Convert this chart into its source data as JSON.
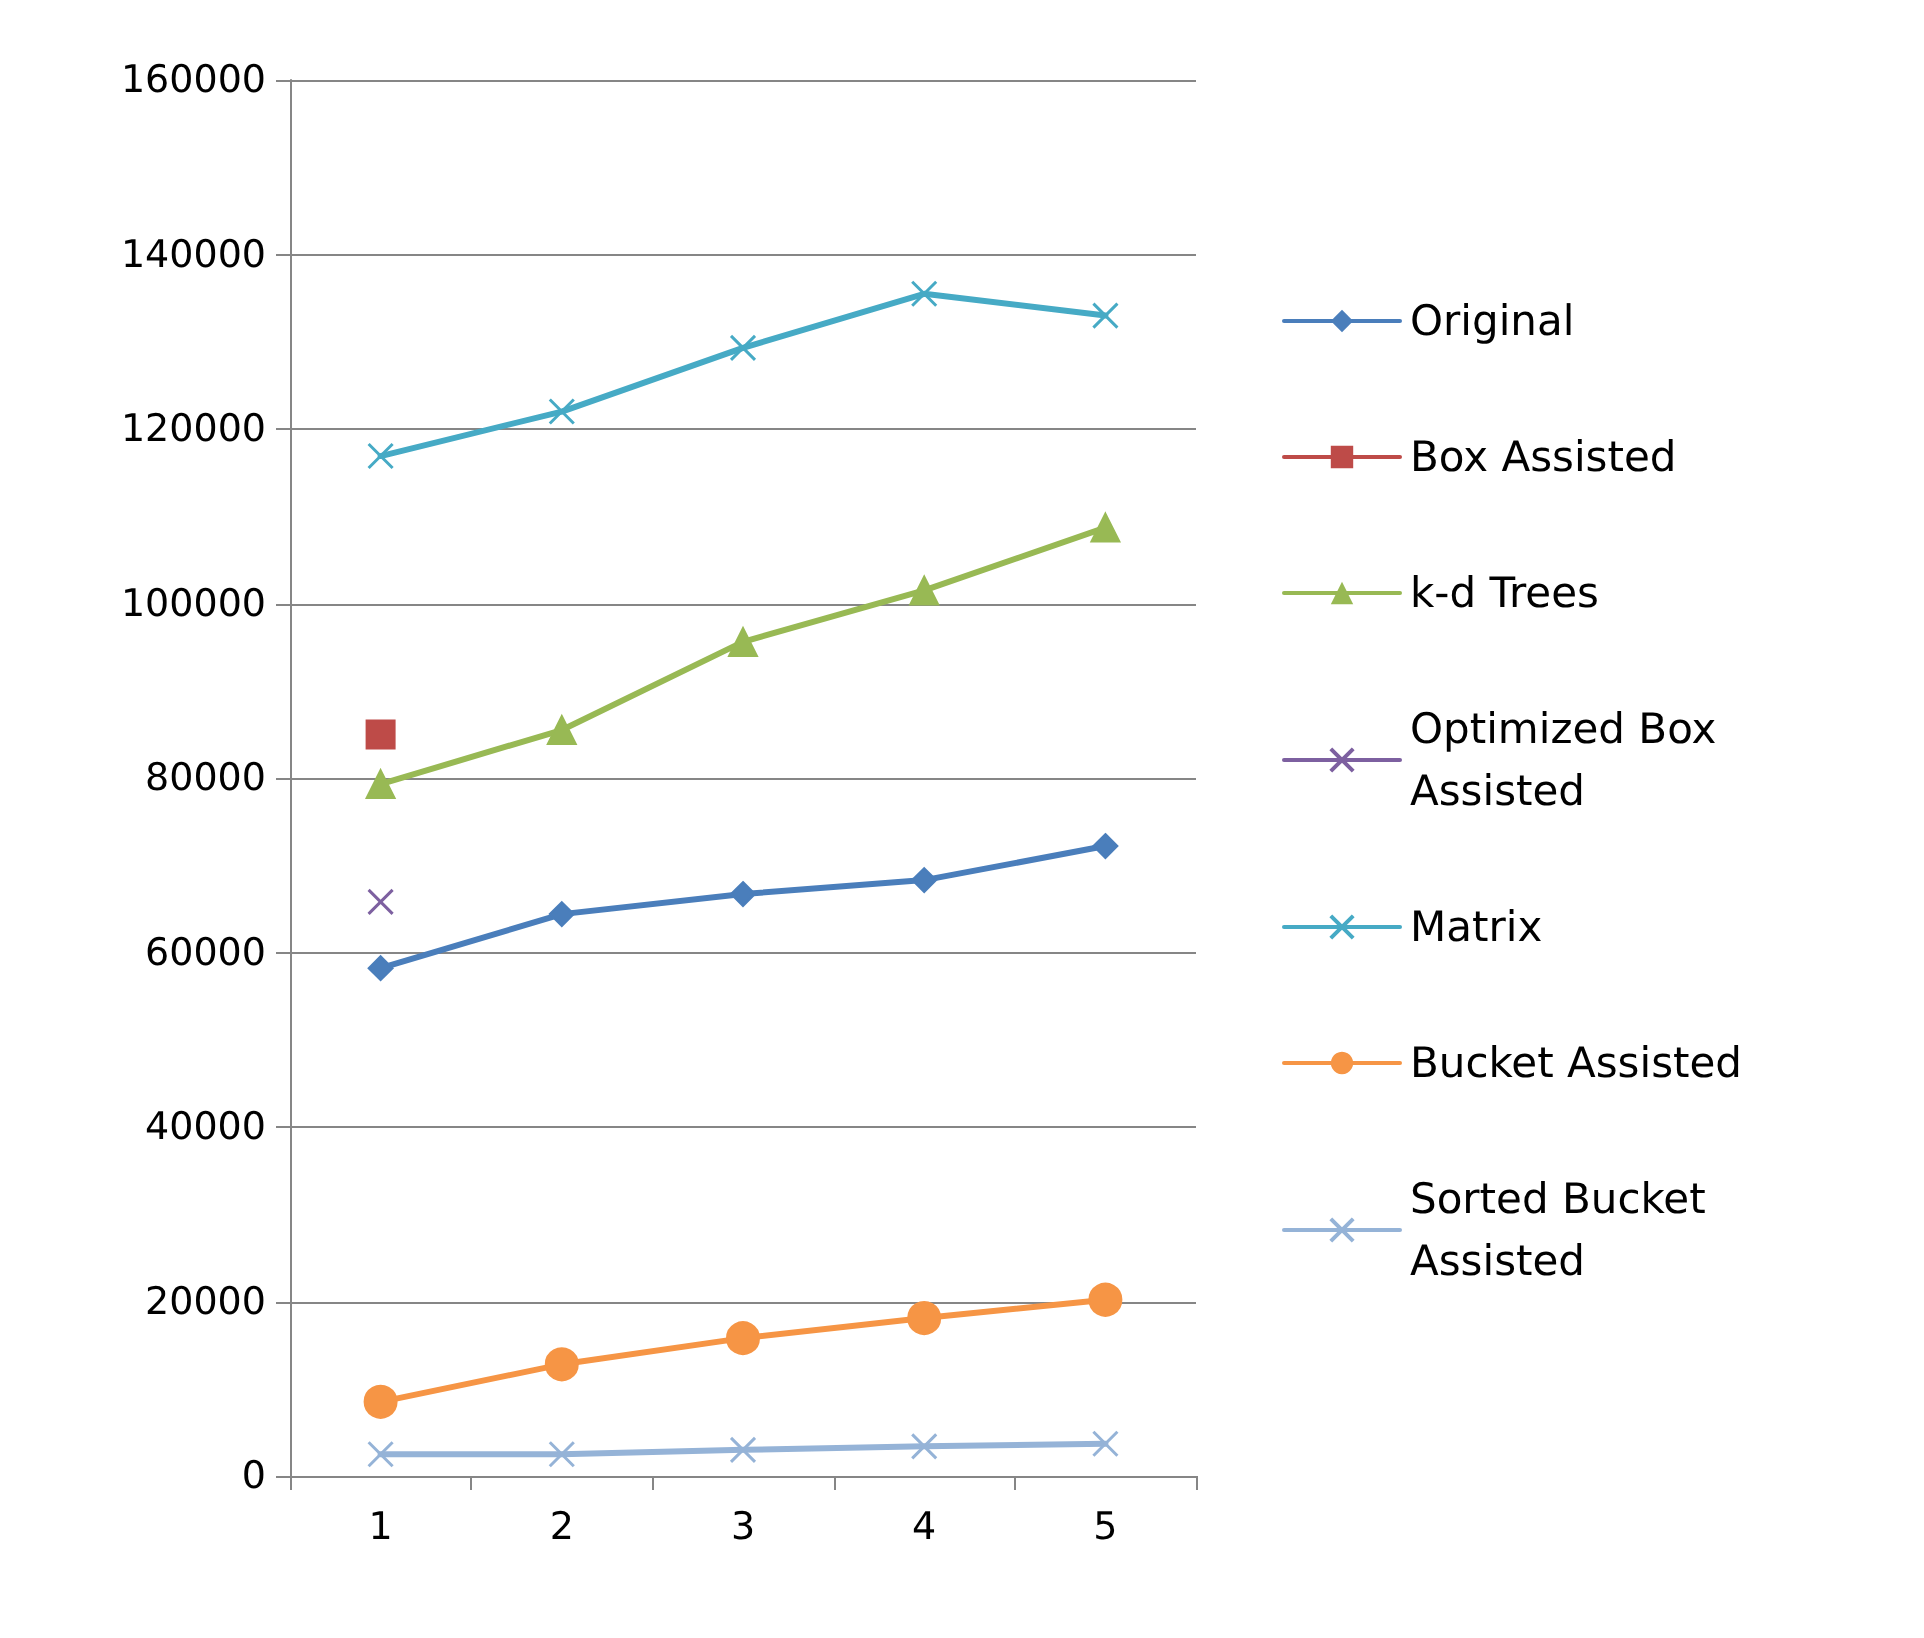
{
  "chart_data": {
    "type": "line",
    "categories": [
      "1",
      "2",
      "3",
      "4",
      "5"
    ],
    "ylim": [
      0,
      160000
    ],
    "yticks": [
      0,
      20000,
      40000,
      60000,
      80000,
      100000,
      120000,
      140000,
      160000
    ],
    "grid": "y",
    "legend": "right",
    "series": [
      {
        "name": "Original",
        "color": "#4a7ebb",
        "marker": "diamond",
        "values": [
          58200,
          64400,
          66700,
          68300,
          72200
        ]
      },
      {
        "name": "Box Assisted",
        "color": "#be4b48",
        "marker": "square",
        "values": [
          85000,
          null,
          null,
          null,
          null
        ]
      },
      {
        "name": "k-d Trees",
        "color": "#98b954",
        "marker": "triangle",
        "values": [
          79300,
          85500,
          95600,
          101500,
          108700
        ]
      },
      {
        "name": "Optimized Box Assisted",
        "color": "#7d60a0",
        "marker": "cross",
        "values": [
          65800,
          null,
          null,
          null,
          null
        ]
      },
      {
        "name": "Matrix",
        "color": "#46aac5",
        "marker": "cross",
        "values": [
          116900,
          122000,
          129300,
          135500,
          133000
        ]
      },
      {
        "name": "Bucket Assisted",
        "color": "#f69545",
        "marker": "circle",
        "values": [
          8500,
          12800,
          15800,
          18100,
          20200
        ]
      },
      {
        "name": "Sorted Bucket Assisted",
        "color": "#95b3d7",
        "marker": "cross",
        "values": [
          2500,
          2500,
          3000,
          3400,
          3700
        ]
      }
    ]
  }
}
